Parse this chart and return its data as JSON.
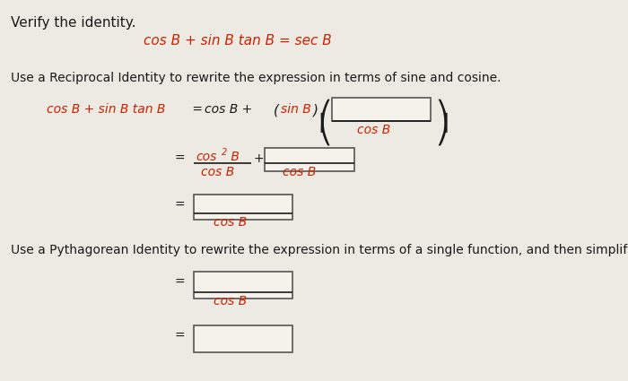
{
  "bg_color": "#edeae4",
  "text_color": "#1a1a1a",
  "red_color": "#cc2200",
  "box_facecolor": "#f5f2ec",
  "box_edgecolor": "#555555",
  "title": "Verify the identity.",
  "identity": "cos B + sin B tan B = sec B",
  "instr1": "Use a Reciprocal Identity to rewrite the expression in terms of sine and cosine.",
  "instr2": "Use a Pythagorean Identity to rewrite the expression in terms of a single function, and then simplify."
}
